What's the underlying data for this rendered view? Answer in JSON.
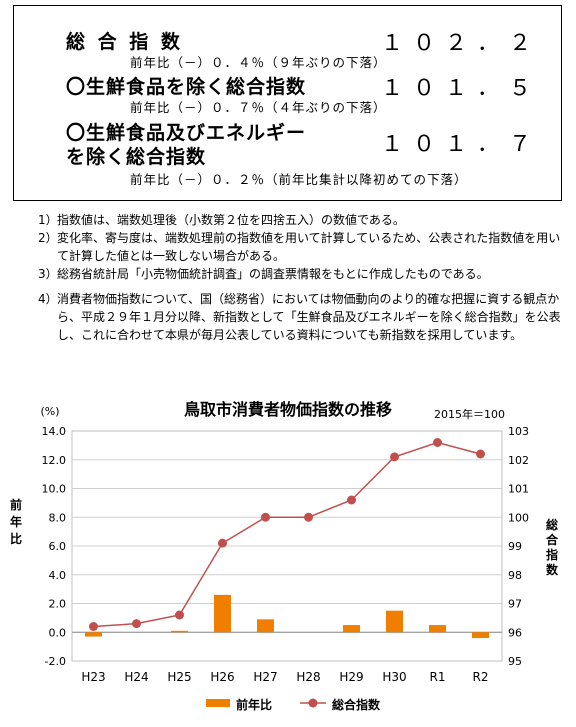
{
  "summary": {
    "items": [
      {
        "name": "総 合 指 数",
        "value": "１０２．２",
        "change": "前年比（－）０．４％（９年ぶりの下落）"
      },
      {
        "name": "〇生鮮食品を除く総合指数",
        "value": "１０１．５",
        "change": "前年比（－）０．７％（４年ぶりの下落）"
      },
      {
        "name": "〇生鮮食品及びエネルギー",
        "name2": "を除く総合指数",
        "value": "１０１．７",
        "change": "前年比（－）０．２％（前年比集計以降初めての下落）"
      }
    ]
  },
  "notes": [
    {
      "num": "1）",
      "text": "指数値は、端数処理後（小数第２位を四捨五入）の数値である。"
    },
    {
      "num": "2）",
      "text": "変化率、寄与度は、端数処理前の指数値を用いて計算しているため、公表された指数値を用いて計算した値とは一致しない場合がある。"
    },
    {
      "num": "3）",
      "text": "総務省統計局「小売物価統計調査」の調査票情報をもとに作成したものである。"
    },
    {
      "num": "4）",
      "text": "消費者物価指数について、国（総務省）においては物価動向のより的確な把握に資する観点から、平成２９年１月分以降、新指数として「生鮮食品及びエネルギーを除く総合指数」を公表し、これに合わせて本県が毎月公表している資料についても新指数を採用しています。"
    }
  ],
  "chart_data": {
    "type": "bar+line",
    "title": "鳥取市消費者物価指数の推移",
    "base_note": "2015年＝100",
    "left_unit": "(%)",
    "ylabel_left": "前年比",
    "ylabel_right": "総合指数",
    "categories": [
      "H23",
      "H24",
      "H25",
      "H26",
      "H27",
      "H28",
      "H29",
      "H30",
      "R1",
      "R2"
    ],
    "left_axis": {
      "min": -2.0,
      "max": 14.0,
      "ticks": [
        "-2.0",
        "0.0",
        "2.0",
        "4.0",
        "6.0",
        "8.0",
        "10.0",
        "12.0",
        "14.0"
      ]
    },
    "right_axis": {
      "min": 95,
      "max": 103,
      "ticks": [
        "95",
        "96",
        "97",
        "98",
        "99",
        "100",
        "101",
        "102",
        "103"
      ]
    },
    "series": [
      {
        "name": "前年比",
        "type": "bar",
        "axis": "left",
        "color": "#F07F00",
        "values": [
          -0.3,
          0.0,
          0.1,
          2.6,
          0.9,
          0.0,
          0.5,
          1.5,
          0.5,
          -0.4
        ]
      },
      {
        "name": "総合指数",
        "type": "line",
        "axis": "right",
        "color": "#C0504D",
        "values": [
          96.2,
          96.3,
          96.6,
          99.1,
          100.0,
          100.0,
          100.6,
          102.1,
          102.6,
          102.2
        ]
      }
    ],
    "grid": true,
    "legend": "bottom"
  }
}
